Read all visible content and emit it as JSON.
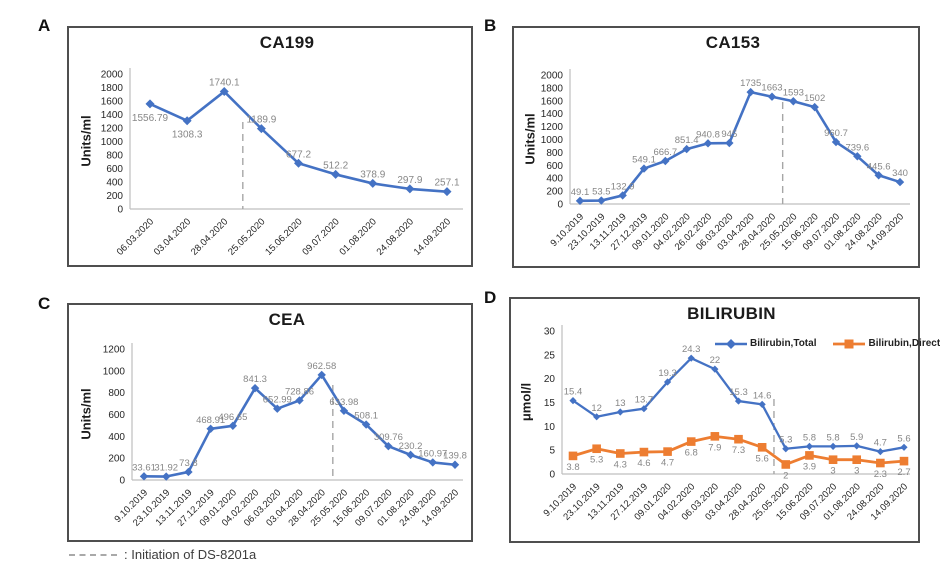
{
  "footnote": {
    "symbol": "gray-dashed-line",
    "text": ": Initiation of DS-8201a"
  },
  "chart_data": [
    {
      "panel_letter": "A",
      "type": "line",
      "title": "CA199",
      "ylabel": "Units/ml",
      "ylim": [
        0,
        2000
      ],
      "ytick_step": 200,
      "grid": false,
      "categories": [
        "06.03.2020",
        "03.04.2020",
        "28.04.2020",
        "25.05.2020",
        "15.06.2020",
        "09.07.2020",
        "01.08.2020",
        "24.08.2020",
        "14.09.2020"
      ],
      "series": [
        {
          "name": "CA199",
          "color": "#4472C4",
          "marker": "diamond",
          "data_label_color": "#878787",
          "data_label_side": "above",
          "below_label_indices": [
            0,
            1
          ],
          "values": [
            1556.79,
            1308.3,
            1740.1,
            1189.9,
            677.2,
            512.2,
            378.9,
            297.9,
            257.1
          ]
        }
      ],
      "annotation": {
        "type": "dashed-vline",
        "color": "#A6A6A6",
        "x_index": 2.5,
        "between_categories": [
          "28.04.2020",
          "25.05.2020"
        ],
        "meaning": "Initiation of DS-8201a"
      }
    },
    {
      "panel_letter": "B",
      "type": "line",
      "title": "CA153",
      "ylabel": "Units/ml",
      "ylim": [
        0,
        2000
      ],
      "ytick_step": 200,
      "grid": false,
      "categories": [
        "9.10.2019",
        "23.10.2019",
        "13.11.2019",
        "27.12.2019",
        "09.01.2020",
        "04.02.2020",
        "26.02.2020",
        "06.03.2020",
        "03.04.2020",
        "28.04.2020",
        "25.05.2020",
        "15.06.2020",
        "09.07.2020",
        "01.08.2020",
        "24.08.2020",
        "14.09.2020"
      ],
      "series": [
        {
          "name": "CA153",
          "color": "#4472C4",
          "marker": "diamond",
          "data_label_color": "#878787",
          "data_label_side": "above",
          "values": [
            49.1,
            53.5,
            132.9,
            549.1,
            666.7,
            851.4,
            940.8,
            945,
            1735,
            1663,
            1593,
            1502,
            960.7,
            739.6,
            445.6,
            340
          ]
        }
      ],
      "annotation": {
        "type": "dashed-vline",
        "color": "#A6A6A6",
        "x_index": 9.5,
        "between_categories": [
          "28.04.2020",
          "25.05.2020"
        ],
        "meaning": "Initiation of DS-8201a"
      }
    },
    {
      "panel_letter": "C",
      "type": "line",
      "title": "CEA",
      "ylabel": "Units/ml",
      "ylim": [
        0,
        1200
      ],
      "ytick_step": 200,
      "grid": false,
      "categories": [
        "9.10.2019",
        "23.10.2019",
        "13.11.2019",
        "27.12.2019",
        "09.01.2020",
        "04.02.2020",
        "06.03.2020",
        "03.04.2020",
        "28.04.2020",
        "25.05.2020",
        "15.06.2020",
        "09.07.2020",
        "01.08.2020",
        "24.08.2020",
        "14.09.2020"
      ],
      "series": [
        {
          "name": "CEA",
          "color": "#4472C4",
          "marker": "diamond",
          "data_label_color": "#878787",
          "data_label_side": "above",
          "values": [
            33.61,
            31.92,
            73.8,
            468.91,
            496.65,
            841.3,
            652.99,
            728.86,
            962.58,
            633.98,
            508.1,
            309.76,
            230.2,
            160.97,
            139.8
          ]
        }
      ],
      "annotation": {
        "type": "dashed-vline",
        "color": "#A6A6A6",
        "x_index": 8.5,
        "between_categories": [
          "28.04.2020",
          "25.05.2020"
        ],
        "meaning": "Initiation of DS-8201a"
      }
    },
    {
      "panel_letter": "D",
      "type": "line",
      "title": "BILIRUBIN",
      "ylabel": "μmol/l",
      "ylim": [
        0,
        30
      ],
      "ytick_step": 5,
      "grid": false,
      "legend": {
        "position": "top-inside"
      },
      "categories": [
        "9.10.2019",
        "23.10.2019",
        "13.11.2019",
        "27.12.2019",
        "09.01.2020",
        "04.02.2020",
        "06.03.2020",
        "03.04.2020",
        "28.04.2020",
        "25.05.2020",
        "15.06.2020",
        "09.07.2020",
        "01.08.2020",
        "24.08.2020",
        "14.09.2020"
      ],
      "series": [
        {
          "name": "Bilirubin,Total",
          "color": "#4472C4",
          "marker": "diamond",
          "data_label_color": "#878787",
          "data_label_side": "above",
          "values": [
            15.4,
            12,
            13,
            13.7,
            19.3,
            24.3,
            22,
            15.3,
            14.6,
            5.3,
            5.8,
            5.8,
            5.9,
            4.7,
            5.6
          ]
        },
        {
          "name": "Bilirubin,Direct",
          "color": "#ED7D31",
          "marker": "square",
          "data_label_color": "#878787",
          "data_label_side": "below",
          "values": [
            3.8,
            5.3,
            4.3,
            4.6,
            4.7,
            6.8,
            7.9,
            7.3,
            5.6,
            2,
            3.9,
            3,
            3,
            2.3,
            2.7
          ]
        }
      ],
      "annotation": {
        "type": "dashed-vline",
        "color": "#A6A6A6",
        "x_index": 8.5,
        "between_categories": [
          "28.04.2020",
          "25.05.2020"
        ],
        "meaning": "Initiation of DS-8201a"
      }
    }
  ]
}
